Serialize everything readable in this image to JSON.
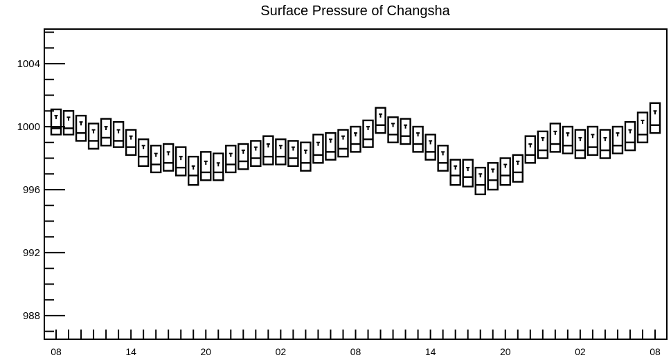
{
  "chart_data": {
    "type": "box",
    "title": "Surface Pressure of Changsha",
    "xlabel": "",
    "ylabel": "",
    "ylim": [
      986.5,
      1006.2
    ],
    "grid": false,
    "y_ticks": [
      988,
      992,
      996,
      1000,
      1004
    ],
    "y_tick_labels": [
      "988",
      "992",
      "996",
      "1000",
      "1004"
    ],
    "x_tick_labels": [
      "08",
      "14",
      "20",
      "02",
      "08",
      "14",
      "20",
      "02",
      "08"
    ],
    "x_tick_label_positions": [
      0,
      6,
      12,
      18,
      24,
      30,
      36,
      42,
      48
    ],
    "x_minor_tick_count": 49,
    "boxes": [
      {
        "x": 0,
        "q1": 999.5,
        "median": 999.9,
        "q3": 1001.1,
        "mean": 1000.7
      },
      {
        "x": 1,
        "q1": 999.5,
        "median": 999.9,
        "q3": 1001.0,
        "mean": 1000.6
      },
      {
        "x": 2,
        "q1": 999.1,
        "median": 999.6,
        "q3": 1000.7,
        "mean": 1000.3
      },
      {
        "x": 3,
        "q1": 998.6,
        "median": 999.1,
        "q3": 1000.2,
        "mean": 999.8
      },
      {
        "x": 4,
        "q1": 998.8,
        "median": 999.3,
        "q3": 1000.5,
        "mean": 1000.0
      },
      {
        "x": 5,
        "q1": 998.7,
        "median": 999.1,
        "q3": 1000.3,
        "mean": 999.8
      },
      {
        "x": 6,
        "q1": 998.2,
        "median": 998.7,
        "q3": 999.8,
        "mean": 999.4
      },
      {
        "x": 7,
        "q1": 997.5,
        "median": 998.1,
        "q3": 999.2,
        "mean": 998.8
      },
      {
        "x": 8,
        "q1": 997.1,
        "median": 997.6,
        "q3": 998.8,
        "mean": 998.3
      },
      {
        "x": 9,
        "q1": 997.2,
        "median": 997.7,
        "q3": 998.9,
        "mean": 998.4
      },
      {
        "x": 10,
        "q1": 996.9,
        "median": 997.4,
        "q3": 998.7,
        "mean": 998.1
      },
      {
        "x": 11,
        "q1": 996.3,
        "median": 996.9,
        "q3": 998.1,
        "mean": 997.5
      },
      {
        "x": 12,
        "q1": 996.6,
        "median": 997.1,
        "q3": 998.4,
        "mean": 997.8
      },
      {
        "x": 13,
        "q1": 996.6,
        "median": 997.1,
        "q3": 998.3,
        "mean": 997.7
      },
      {
        "x": 14,
        "q1": 997.1,
        "median": 997.6,
        "q3": 998.8,
        "mean": 998.3
      },
      {
        "x": 15,
        "q1": 997.3,
        "median": 997.8,
        "q3": 998.9,
        "mean": 998.5
      },
      {
        "x": 16,
        "q1": 997.5,
        "median": 998.0,
        "q3": 999.1,
        "mean": 998.7
      },
      {
        "x": 17,
        "q1": 997.6,
        "median": 998.1,
        "q3": 999.4,
        "mean": 998.9
      },
      {
        "x": 18,
        "q1": 997.6,
        "median": 998.1,
        "q3": 999.2,
        "mean": 998.8
      },
      {
        "x": 19,
        "q1": 997.5,
        "median": 998.0,
        "q3": 999.1,
        "mean": 998.7
      },
      {
        "x": 20,
        "q1": 997.2,
        "median": 997.7,
        "q3": 999.0,
        "mean": 998.5
      },
      {
        "x": 21,
        "q1": 997.7,
        "median": 998.2,
        "q3": 999.5,
        "mean": 999.0
      },
      {
        "x": 22,
        "q1": 997.9,
        "median": 998.4,
        "q3": 999.6,
        "mean": 999.2
      },
      {
        "x": 23,
        "q1": 998.1,
        "median": 998.6,
        "q3": 999.8,
        "mean": 999.4
      },
      {
        "x": 24,
        "q1": 998.4,
        "median": 998.9,
        "q3": 1000.0,
        "mean": 999.6
      },
      {
        "x": 25,
        "q1": 998.7,
        "median": 999.2,
        "q3": 1000.4,
        "mean": 1000.0
      },
      {
        "x": 26,
        "q1": 999.6,
        "median": 1000.1,
        "q3": 1001.2,
        "mean": 1000.8
      },
      {
        "x": 27,
        "q1": 999.0,
        "median": 999.5,
        "q3": 1000.6,
        "mean": 1000.2
      },
      {
        "x": 28,
        "q1": 998.9,
        "median": 999.4,
        "q3": 1000.5,
        "mean": 1000.1
      },
      {
        "x": 29,
        "q1": 998.4,
        "median": 998.9,
        "q3": 1000.0,
        "mean": 999.6
      },
      {
        "x": 30,
        "q1": 997.9,
        "median": 998.4,
        "q3": 999.5,
        "mean": 999.1
      },
      {
        "x": 31,
        "q1": 997.2,
        "median": 997.7,
        "q3": 998.8,
        "mean": 998.4
      },
      {
        "x": 32,
        "q1": 996.3,
        "median": 996.9,
        "q3": 997.9,
        "mean": 997.5
      },
      {
        "x": 33,
        "q1": 996.2,
        "median": 996.8,
        "q3": 997.9,
        "mean": 997.4
      },
      {
        "x": 34,
        "q1": 995.7,
        "median": 996.3,
        "q3": 997.4,
        "mean": 997.0
      },
      {
        "x": 35,
        "q1": 996.0,
        "median": 996.6,
        "q3": 997.7,
        "mean": 997.3
      },
      {
        "x": 36,
        "q1": 996.3,
        "median": 996.9,
        "q3": 998.0,
        "mean": 997.6
      },
      {
        "x": 37,
        "q1": 996.5,
        "median": 997.1,
        "q3": 998.2,
        "mean": 997.8
      },
      {
        "x": 38,
        "q1": 997.7,
        "median": 998.2,
        "q3": 999.4,
        "mean": 998.9
      },
      {
        "x": 39,
        "q1": 998.0,
        "median": 998.5,
        "q3": 999.7,
        "mean": 999.3
      },
      {
        "x": 40,
        "q1": 998.4,
        "median": 998.9,
        "q3": 1000.2,
        "mean": 999.7
      },
      {
        "x": 41,
        "q1": 998.3,
        "median": 998.8,
        "q3": 1000.0,
        "mean": 999.6
      },
      {
        "x": 42,
        "q1": 998.0,
        "median": 998.5,
        "q3": 999.8,
        "mean": 999.3
      },
      {
        "x": 43,
        "q1": 998.2,
        "median": 998.7,
        "q3": 1000.0,
        "mean": 999.5
      },
      {
        "x": 44,
        "q1": 998.0,
        "median": 998.5,
        "q3": 999.8,
        "mean": 999.3
      },
      {
        "x": 45,
        "q1": 998.3,
        "median": 998.8,
        "q3": 1000.0,
        "mean": 999.6
      },
      {
        "x": 46,
        "q1": 998.5,
        "median": 999.0,
        "q3": 1000.3,
        "mean": 999.8
      },
      {
        "x": 47,
        "q1": 999.0,
        "median": 999.5,
        "q3": 1000.9,
        "mean": 1000.4
      },
      {
        "x": 48,
        "q1": 999.6,
        "median": 1000.1,
        "q3": 1001.5,
        "mean": 1001.0
      }
    ],
    "colors": {
      "axis": "#000000",
      "box_stroke": "#000000",
      "background": "#ffffff"
    }
  }
}
